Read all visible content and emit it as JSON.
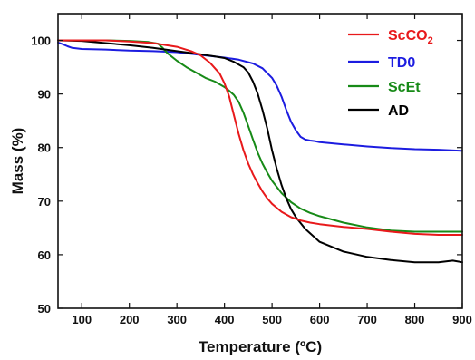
{
  "chart_data": {
    "type": "line",
    "title": "",
    "xlabel": "Temperature (ºC)",
    "ylabel": "Mass (%)",
    "xlim": [
      50,
      900
    ],
    "ylim": [
      50,
      105
    ],
    "xticks": [
      100,
      200,
      300,
      400,
      500,
      600,
      700,
      800,
      900
    ],
    "yticks": [
      50,
      60,
      70,
      80,
      90,
      100
    ],
    "grid": false,
    "legend_position": "top-right",
    "series": [
      {
        "name": "ScCO2",
        "color": "#e8191b",
        "legend_main": "ScCO",
        "legend_sub": "2",
        "x": [
          50,
          100,
          150,
          200,
          250,
          300,
          330,
          350,
          370,
          390,
          400,
          410,
          420,
          430,
          440,
          450,
          460,
          470,
          480,
          490,
          500,
          520,
          540,
          560,
          580,
          600,
          650,
          700,
          750,
          800,
          850,
          900
        ],
        "y": [
          100,
          100,
          100,
          99.8,
          99.5,
          98.8,
          98.0,
          97.2,
          95.8,
          93.8,
          92.0,
          89.5,
          86.0,
          82.5,
          79.5,
          77.0,
          75.0,
          73.3,
          71.8,
          70.5,
          69.5,
          68.0,
          67.0,
          66.4,
          66.0,
          65.7,
          65.2,
          64.8,
          64.3,
          63.9,
          63.7,
          63.7
        ]
      },
      {
        "name": "TD0",
        "color": "#1c1ce0",
        "legend_main": "TD0",
        "legend_sub": "",
        "x": [
          50,
          60,
          70,
          80,
          90,
          100,
          150,
          200,
          250,
          300,
          350,
          400,
          430,
          460,
          480,
          500,
          510,
          520,
          530,
          540,
          550,
          560,
          570,
          580,
          590,
          600,
          650,
          700,
          750,
          800,
          850,
          900
        ],
        "y": [
          99.6,
          99.3,
          98.9,
          98.6,
          98.5,
          98.4,
          98.3,
          98.1,
          98.0,
          97.8,
          97.3,
          96.8,
          96.4,
          95.7,
          94.8,
          93.0,
          91.5,
          89.5,
          87.0,
          84.8,
          83.2,
          82.0,
          81.5,
          81.3,
          81.2,
          81.0,
          80.6,
          80.2,
          79.9,
          79.7,
          79.6,
          79.4
        ]
      },
      {
        "name": "ScEt",
        "color": "#178a17",
        "legend_main": "ScEt",
        "legend_sub": "",
        "x": [
          50,
          100,
          150,
          200,
          240,
          260,
          270,
          280,
          300,
          320,
          340,
          360,
          380,
          400,
          410,
          420,
          430,
          440,
          450,
          460,
          470,
          480,
          490,
          500,
          520,
          540,
          560,
          580,
          600,
          650,
          700,
          750,
          800,
          850,
          900
        ],
        "y": [
          100,
          100,
          100,
          99.9,
          99.7,
          99.4,
          98.6,
          97.6,
          96.2,
          95.0,
          94.0,
          93.0,
          92.3,
          91.3,
          90.6,
          89.8,
          88.5,
          86.5,
          84.0,
          81.5,
          79.0,
          77.0,
          75.3,
          73.8,
          71.5,
          69.8,
          68.6,
          67.8,
          67.2,
          66.0,
          65.1,
          64.5,
          64.3,
          64.3,
          64.3
        ]
      },
      {
        "name": "AD",
        "color": "#000000",
        "legend_main": "AD",
        "legend_sub": "",
        "x": [
          50,
          100,
          150,
          200,
          250,
          300,
          350,
          380,
          400,
          420,
          440,
          450,
          460,
          470,
          480,
          490,
          500,
          510,
          520,
          530,
          540,
          550,
          570,
          600,
          650,
          700,
          750,
          800,
          850,
          880,
          900
        ],
        "y": [
          100,
          99.9,
          99.5,
          99.1,
          98.6,
          98.0,
          97.4,
          97.0,
          96.7,
          96.0,
          95.0,
          94.0,
          92.3,
          90.0,
          87.0,
          83.5,
          79.5,
          76.0,
          73.0,
          70.5,
          68.5,
          67.0,
          64.8,
          62.4,
          60.6,
          59.6,
          59.0,
          58.6,
          58.6,
          58.9,
          58.6
        ]
      }
    ]
  }
}
